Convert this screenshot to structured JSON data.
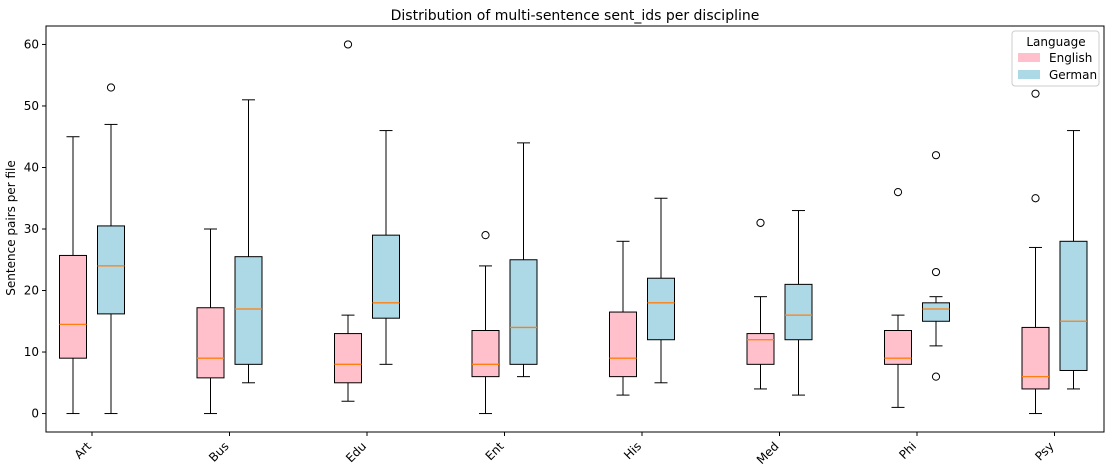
{
  "chart_data": {
    "type": "boxplot",
    "title": "Distribution of multi-sentence sent_ids per discipline",
    "xlabel": "",
    "ylabel": "Sentence pairs per file",
    "ylim": [
      -3,
      63
    ],
    "yticks": [
      0,
      10,
      20,
      30,
      40,
      50,
      60
    ],
    "categories": [
      "Art",
      "Bus",
      "Edu",
      "Ent",
      "His",
      "Med",
      "Phi",
      "Psy"
    ],
    "legend": {
      "title": "Language",
      "placement": "top-right",
      "entries": [
        "English",
        "German"
      ]
    },
    "colors": {
      "English": "#ffc0cb",
      "German": "#add8e6",
      "median": "#ff7f0e",
      "edge": "#000000"
    },
    "series": [
      {
        "name": "English",
        "boxes": [
          {
            "whislo": 0,
            "q1": 9,
            "med": 14.5,
            "q3": 25.7,
            "whishi": 45,
            "fliers": []
          },
          {
            "whislo": 0,
            "q1": 5.8,
            "med": 9,
            "q3": 17.2,
            "whishi": 30,
            "fliers": []
          },
          {
            "whislo": 2,
            "q1": 5,
            "med": 8,
            "q3": 13,
            "whishi": 16,
            "fliers": [
              60
            ]
          },
          {
            "whislo": 0,
            "q1": 6,
            "med": 8,
            "q3": 13.5,
            "whishi": 24,
            "fliers": [
              29
            ]
          },
          {
            "whislo": 3,
            "q1": 6,
            "med": 9,
            "q3": 16.5,
            "whishi": 28,
            "fliers": []
          },
          {
            "whislo": 4,
            "q1": 8,
            "med": 12,
            "q3": 13,
            "whishi": 19,
            "fliers": [
              31
            ]
          },
          {
            "whislo": 1,
            "q1": 8,
            "med": 9,
            "q3": 13.5,
            "whishi": 16,
            "fliers": [
              36
            ]
          },
          {
            "whislo": 0,
            "q1": 4,
            "med": 6,
            "q3": 14,
            "whishi": 27,
            "fliers": [
              35,
              52
            ]
          }
        ]
      },
      {
        "name": "German",
        "boxes": [
          {
            "whislo": 0,
            "q1": 16.2,
            "med": 24,
            "q3": 30.5,
            "whishi": 47,
            "fliers": [
              53
            ]
          },
          {
            "whislo": 5,
            "q1": 8,
            "med": 17,
            "q3": 25.5,
            "whishi": 51,
            "fliers": []
          },
          {
            "whislo": 8,
            "q1": 15.5,
            "med": 18,
            "q3": 29,
            "whishi": 46,
            "fliers": []
          },
          {
            "whislo": 6,
            "q1": 8,
            "med": 14,
            "q3": 25,
            "whishi": 44,
            "fliers": []
          },
          {
            "whislo": 5,
            "q1": 12,
            "med": 18,
            "q3": 22,
            "whishi": 35,
            "fliers": []
          },
          {
            "whislo": 3,
            "q1": 12,
            "med": 16,
            "q3": 21,
            "whishi": 33,
            "fliers": []
          },
          {
            "whislo": 11,
            "q1": 15,
            "med": 17,
            "q3": 18,
            "whishi": 19,
            "fliers": [
              6,
              23,
              42
            ]
          },
          {
            "whislo": 4,
            "q1": 7,
            "med": 15,
            "q3": 28,
            "whishi": 46,
            "fliers": []
          }
        ]
      }
    ]
  }
}
